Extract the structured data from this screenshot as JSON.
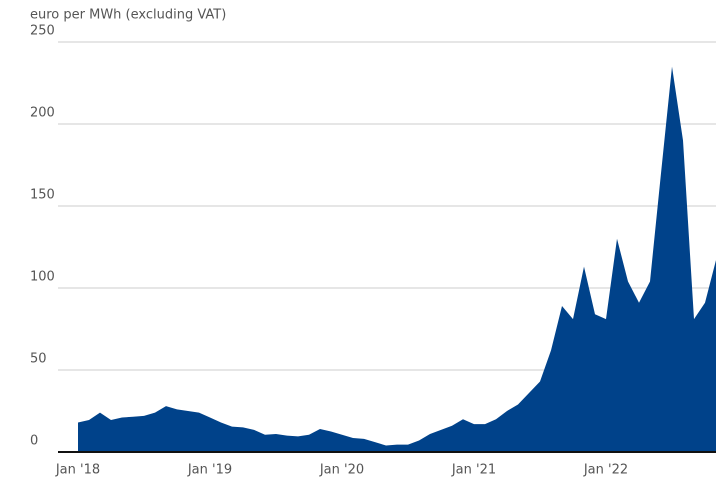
{
  "chart_data": {
    "type": "area",
    "y_label": "euro per MWh (excluding VAT)",
    "categories": [
      "Jan '18",
      null,
      null,
      null,
      null,
      null,
      null,
      null,
      null,
      null,
      null,
      null,
      "Jan '19",
      null,
      null,
      null,
      null,
      null,
      null,
      null,
      null,
      null,
      null,
      null,
      "Jan '20",
      null,
      null,
      null,
      null,
      null,
      null,
      null,
      null,
      null,
      null,
      null,
      "Jan '21",
      null,
      null,
      null,
      null,
      null,
      null,
      null,
      null,
      null,
      null,
      null,
      "Jan '22",
      null,
      null,
      null,
      null,
      null,
      null,
      null,
      null,
      null,
      null
    ],
    "values": [
      18,
      19.5,
      24,
      19.5,
      21,
      21.5,
      22,
      24,
      28,
      26,
      25,
      24,
      21,
      18,
      15.5,
      15,
      13.5,
      10.5,
      11,
      10,
      9.5,
      10.5,
      14,
      12.5,
      10.5,
      8.5,
      8,
      6,
      4,
      4.5,
      4.5,
      7,
      11,
      13.5,
      16,
      20,
      17,
      17,
      20,
      25,
      29,
      36,
      43,
      62,
      89,
      81,
      113,
      84,
      81,
      130,
      104,
      91,
      104,
      170,
      235,
      190,
      81,
      91,
      117
    ],
    "color": "#00428a",
    "ylim": [
      0,
      250
    ],
    "yticks": [
      0,
      50,
      100,
      150,
      200,
      250
    ],
    "grid": true
  }
}
